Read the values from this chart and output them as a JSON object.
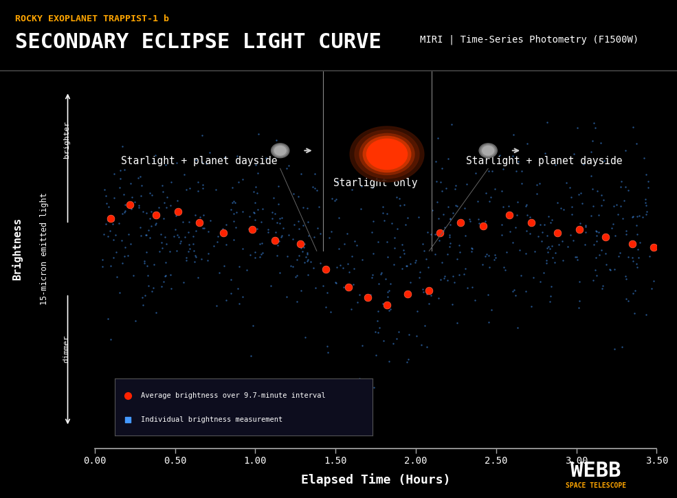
{
  "bg_color": "#000000",
  "header_bg_color": "#111111",
  "title_small": "ROCKY EXOPLANET TRAPPIST-1 b",
  "title_small_color": "#FFA500",
  "title_large": "SECONDARY ECLIPSE LIGHT CURVE",
  "title_large_color": "#FFFFFF",
  "subtitle_right": "MIRI | Time-Series Photometry (F1500W)",
  "subtitle_right_color": "#FFFFFF",
  "xlabel": "Elapsed Time (Hours)",
  "ylabel_main": "Brightness",
  "ylabel_sub": "15-micron emitted light",
  "xlim": [
    0.0,
    3.5
  ],
  "xticks": [
    0.0,
    0.5,
    1.0,
    1.5,
    2.0,
    2.5,
    3.0,
    3.5
  ],
  "xlabel_color": "#FFFFFF",
  "axis_color": "#AAAAAA",
  "label1": "Starlight + planet dayside",
  "label2": "Starlight only",
  "label3": "Starlight + planet dayside",
  "annotation_color": "#FFFFFF",
  "red_dot_color": "#FF2200",
  "blue_dot_color": "#4499FF",
  "legend_box_color": "#1A1A2E",
  "legend_border_color": "#555555",
  "brighter_text": "brighter",
  "dimmer_text": "dimmer",
  "star_color_center": "#FF3300",
  "star_color_glow": "#8B2500",
  "star_color_outer": "#3A1000",
  "planet_color": "#AAAAAA",
  "arrow_color": "#CCCCCC"
}
